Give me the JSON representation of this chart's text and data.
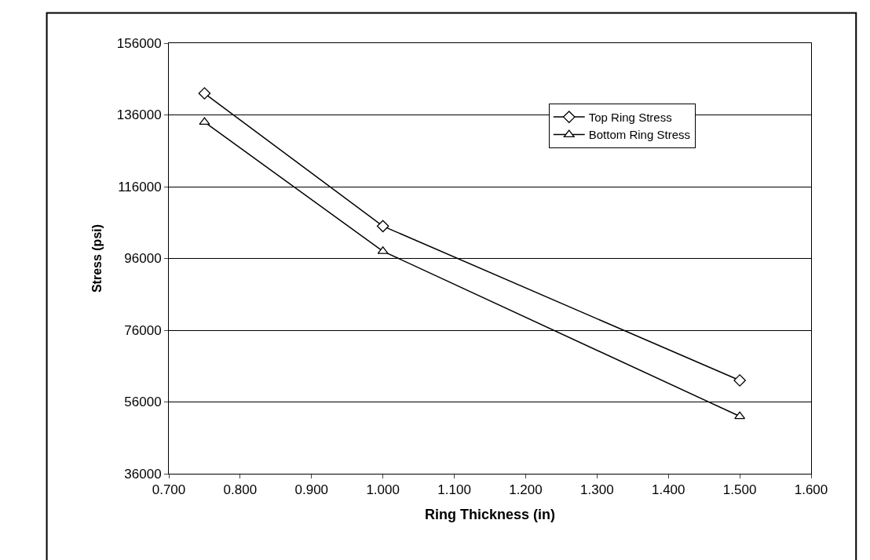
{
  "chart_data": {
    "type": "line",
    "xlabel": "Ring Thickness (in)",
    "ylabel": "Stress (psi)",
    "x": [
      0.75,
      1.0,
      1.5
    ],
    "series": [
      {
        "name": "Top Ring Stress",
        "color": "#000000",
        "marker": "diamond",
        "values": [
          142000,
          105000,
          62000
        ]
      },
      {
        "name": "Bottom Ring Stress",
        "color": "#000000",
        "marker": "triangle",
        "values": [
          134000,
          98000,
          52000
        ]
      }
    ],
    "xlim": [
      0.7,
      1.6
    ],
    "xticks": [
      {
        "value": 0.7,
        "label": "0.700"
      },
      {
        "value": 0.8,
        "label": "0.800"
      },
      {
        "value": 0.9,
        "label": "0.900"
      },
      {
        "value": 1.0,
        "label": "1.000"
      },
      {
        "value": 1.1,
        "label": "1.100"
      },
      {
        "value": 1.2,
        "label": "1.200"
      },
      {
        "value": 1.3,
        "label": "1.300"
      },
      {
        "value": 1.4,
        "label": "1.400"
      },
      {
        "value": 1.5,
        "label": "1.500"
      },
      {
        "value": 1.6,
        "label": "1.600"
      }
    ],
    "ylim": [
      36000,
      156000
    ],
    "yticks": [
      36000,
      56000,
      76000,
      96000,
      116000,
      136000,
      156000
    ],
    "grid": "y",
    "legend": "top right",
    "line_style": "solid"
  }
}
